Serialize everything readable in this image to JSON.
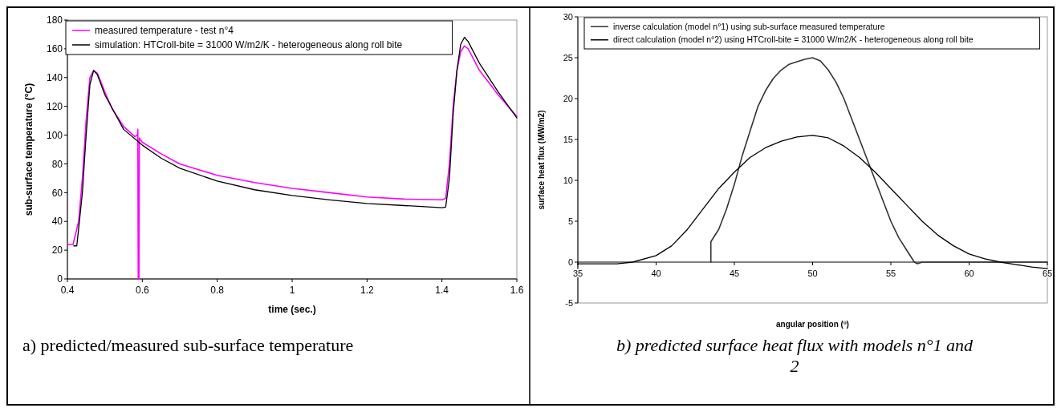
{
  "chart_data": [
    {
      "type": "line",
      "xlabel": "time (sec.)",
      "ylabel": "sub-surface temperature (°C)",
      "xlim": [
        0.4,
        1.6
      ],
      "ylim": [
        0,
        180
      ],
      "xticks": [
        0.4,
        0.6,
        0.8,
        1,
        1.2,
        1.4,
        1.6
      ],
      "yticks": [
        0,
        20,
        40,
        60,
        80,
        100,
        120,
        140,
        160,
        180
      ],
      "grid": false,
      "legend": "top left",
      "line_style": "solid",
      "annotations": [
        "a) predicted/measured sub-surface temperature"
      ],
      "series": [
        {
          "name": "measured temperature - test n°4",
          "color": "#ff00ff",
          "x": [
            0.4,
            0.415,
            0.43,
            0.44,
            0.45,
            0.46,
            0.47,
            0.48,
            0.5,
            0.52,
            0.55,
            0.58,
            0.587,
            0.588,
            0.589,
            0.591,
            0.592,
            0.6,
            0.65,
            0.7,
            0.8,
            0.9,
            1.0,
            1.1,
            1.2,
            1.3,
            1.4,
            1.41,
            1.42,
            1.43,
            1.44,
            1.45,
            1.46,
            1.47,
            1.5,
            1.55,
            1.6
          ],
          "values": [
            24,
            24,
            40,
            70,
            110,
            140,
            145,
            143,
            130,
            118,
            106,
            99,
            100,
            104,
            0,
            0,
            98,
            95,
            87,
            80,
            72,
            67,
            63,
            60,
            57,
            55.5,
            55,
            56,
            80,
            120,
            145,
            158,
            162,
            160,
            145,
            128,
            113
          ]
        },
        {
          "name": "simulation: HTCroll-bite = 31000 W/m2/K - heterogeneous along roll bite",
          "color": "#000000",
          "x": [
            0.417,
            0.425,
            0.43,
            0.44,
            0.45,
            0.46,
            0.47,
            0.48,
            0.5,
            0.55,
            0.6,
            0.65,
            0.7,
            0.8,
            0.9,
            1.0,
            1.1,
            1.2,
            1.3,
            1.4,
            1.41,
            1.42,
            1.43,
            1.44,
            1.45,
            1.46,
            1.47,
            1.5,
            1.55,
            1.6
          ],
          "values": [
            23,
            23,
            35,
            60,
            100,
            135,
            145,
            142,
            128,
            104,
            93,
            84,
            77,
            68,
            62,
            58,
            55,
            52.5,
            51,
            49.5,
            50,
            70,
            115,
            145,
            163,
            168,
            165,
            150,
            130,
            112
          ]
        }
      ]
    },
    {
      "type": "line",
      "xlabel": "angular position (º)",
      "ylabel": "surface heat flux  (MW/m2)",
      "xlim": [
        35,
        65
      ],
      "ylim": [
        -5,
        30
      ],
      "xticks": [
        35,
        40,
        45,
        50,
        55,
        60,
        65
      ],
      "yticks": [
        -5,
        0,
        5,
        10,
        15,
        20,
        25,
        30
      ],
      "grid": false,
      "legend": "top",
      "line_style": "solid",
      "annotations": [
        "b) predicted surface heat flux with models n°1 and 2"
      ],
      "series": [
        {
          "name": "inverse calculation (model n°1) using sub-surface measured temperature",
          "color": "#333333",
          "x": [
            43.5,
            43.5,
            44,
            44.5,
            45,
            45.5,
            46,
            46.5,
            47,
            47.5,
            48,
            48.5,
            49,
            49.5,
            50,
            50.5,
            51,
            51.5,
            52,
            52.5,
            53,
            53.5,
            54,
            54.5,
            55,
            55.5,
            56,
            56.5,
            56.7,
            57,
            65
          ],
          "values": [
            0,
            2.5,
            4,
            6.5,
            9.5,
            13,
            16,
            19,
            21,
            22.5,
            23.5,
            24.2,
            24.5,
            24.8,
            25,
            24.6,
            23.5,
            22,
            20,
            17.5,
            15,
            12.5,
            10,
            7.5,
            5,
            3,
            1.5,
            0,
            -0.2,
            0,
            0
          ]
        },
        {
          "name": "direct calculation (model n°2) using HTCroll-bite = 31000 W/m2/K - heterogeneous along roll bite",
          "color": "#000000",
          "x": [
            35,
            37.5,
            38.5,
            40,
            41,
            42,
            43,
            44,
            45,
            46,
            47,
            48,
            49,
            50,
            51,
            52,
            53,
            54,
            55,
            56,
            57,
            58,
            59,
            60,
            61,
            62,
            63,
            64,
            65
          ],
          "values": [
            -0.2,
            -0.2,
            0,
            0.8,
            2,
            4,
            6.5,
            9,
            11,
            12.8,
            14,
            14.8,
            15.3,
            15.5,
            15.2,
            14.2,
            12.8,
            11,
            9,
            7,
            5,
            3.3,
            2,
            1,
            0.4,
            0,
            -0.3,
            -0.6,
            -0.8
          ]
        }
      ]
    }
  ]
}
